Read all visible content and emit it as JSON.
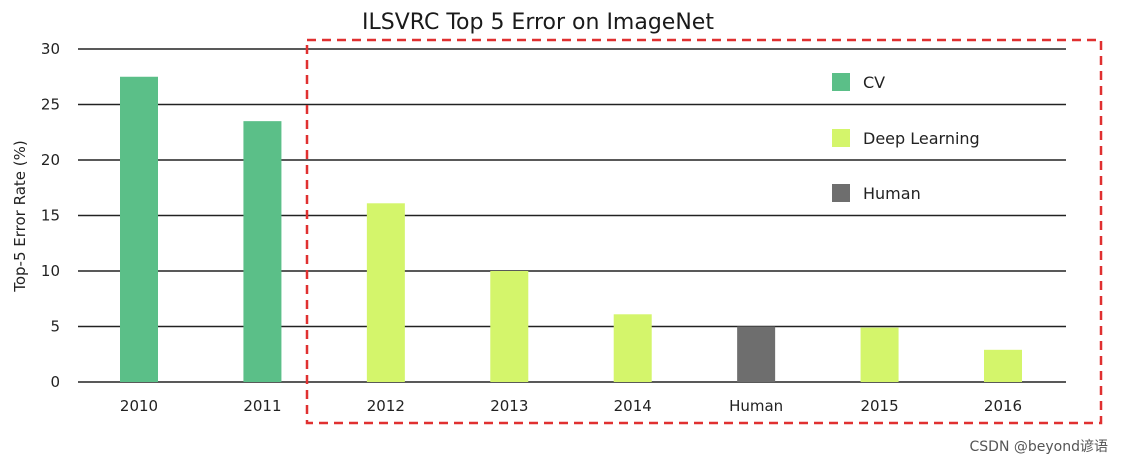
{
  "chart_data": {
    "type": "bar",
    "title": "ILSVRC Top 5 Error on ImageNet",
    "ylabel": "Top-5 Error Rate (%)",
    "xlabel": "",
    "ylim": [
      0,
      30
    ],
    "yticks": [
      0,
      5,
      10,
      15,
      20,
      25,
      30
    ],
    "grid": true,
    "legend_position": "top-right",
    "categories": [
      "2010",
      "2011",
      "2012",
      "2013",
      "2014",
      "Human",
      "2015",
      "2016"
    ],
    "values": [
      27.5,
      23.5,
      16.1,
      10,
      6.1,
      5,
      4.9,
      2.9
    ],
    "bar_series": [
      "CV",
      "CV",
      "Deep Learning",
      "Deep Learning",
      "Deep Learning",
      "Human",
      "Deep Learning",
      "Deep Learning"
    ],
    "series": [
      {
        "name": "CV",
        "color": "#5bbf88"
      },
      {
        "name": "Deep Learning",
        "color": "#d4f56b"
      },
      {
        "name": "Human",
        "color": "#6e6e6e"
      }
    ],
    "highlight_box_color": "#e03030"
  },
  "watermark": "CSDN @beyond谚语"
}
